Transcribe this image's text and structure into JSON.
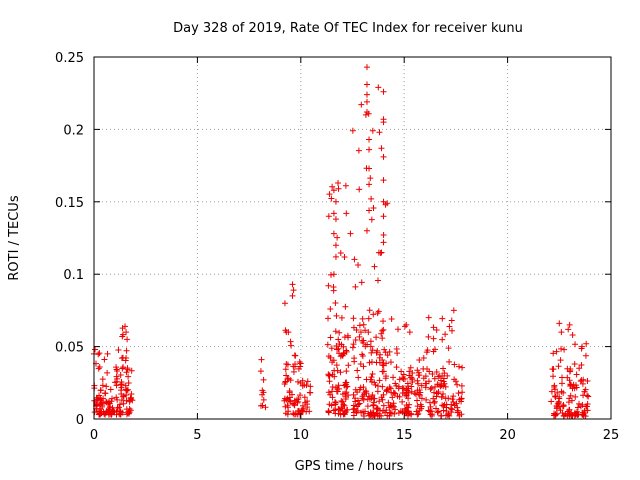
{
  "chart_data": {
    "type": "scatter",
    "title": "Day 328 of 2019, Rate Of TEC Index for receiver kunu",
    "xlabel": "GPS time / hours",
    "ylabel": "ROTI / TECUs",
    "xlim": [
      0,
      25
    ],
    "ylim": [
      0,
      0.25
    ],
    "xticks": [
      0,
      5,
      10,
      15,
      20,
      25
    ],
    "xtick_labels": [
      "0",
      "5",
      "10",
      "15",
      "20",
      "25"
    ],
    "yticks": [
      0,
      0.05,
      0.1,
      0.15,
      0.2,
      0.25
    ],
    "ytick_labels": [
      "0",
      "0.05",
      "0.1",
      "0.15",
      "0.2",
      "0.25"
    ],
    "grid": true,
    "marker": "+",
    "series_color": "#ee0000",
    "series": [
      {
        "name": "ROTI",
        "clusters": [
          {
            "x_range": [
              0.0,
              0.7
            ],
            "y_base": 0.003,
            "y_typical": 0.025,
            "y_max": 0.048,
            "density": 60
          },
          {
            "x_range": [
              0.7,
              1.0
            ],
            "y_base": 0.003,
            "y_typical": 0.015,
            "y_max": 0.025,
            "density": 20
          },
          {
            "x_range": [
              1.0,
              1.9
            ],
            "y_base": 0.003,
            "y_typical": 0.035,
            "y_max": 0.064,
            "density": 70
          },
          {
            "x_range": [
              8.0,
              8.3
            ],
            "y_base": 0.008,
            "y_typical": 0.02,
            "y_max": 0.041,
            "density": 8
          },
          {
            "x_range": [
              9.2,
              10.0
            ],
            "y_base": 0.003,
            "y_typical": 0.04,
            "y_max": 0.093,
            "density": 60
          },
          {
            "x_range": [
              10.0,
              10.5
            ],
            "y_base": 0.005,
            "y_typical": 0.03,
            "y_max": 0.05,
            "density": 20
          },
          {
            "x_range": [
              11.3,
              12.3
            ],
            "y_base": 0.003,
            "y_typical": 0.06,
            "y_max": 0.163,
            "density": 110
          },
          {
            "x_range": [
              12.5,
              14.3
            ],
            "y_base": 0.002,
            "y_typical": 0.07,
            "y_max": 0.243,
            "density": 180
          },
          {
            "x_range": [
              14.3,
              14.8
            ],
            "y_base": 0.003,
            "y_typical": 0.03,
            "y_max": 0.07,
            "density": 30
          },
          {
            "x_range": [
              14.8,
              15.4
            ],
            "y_base": 0.002,
            "y_typical": 0.035,
            "y_max": 0.065,
            "density": 50
          },
          {
            "x_range": [
              15.5,
              17.8
            ],
            "y_base": 0.002,
            "y_typical": 0.035,
            "y_max": 0.075,
            "density": 140
          },
          {
            "x_range": [
              22.1,
              23.9
            ],
            "y_base": 0.002,
            "y_typical": 0.035,
            "y_max": 0.066,
            "density": 120
          }
        ],
        "notable_points": [
          {
            "x": 13.2,
            "y": 0.243
          },
          {
            "x": 13.2,
            "y": 0.231
          },
          {
            "x": 13.2,
            "y": 0.224
          },
          {
            "x": 13.2,
            "y": 0.219
          },
          {
            "x": 13.2,
            "y": 0.212
          },
          {
            "x": 13.3,
            "y": 0.193
          },
          {
            "x": 13.3,
            "y": 0.186
          },
          {
            "x": 13.3,
            "y": 0.173
          },
          {
            "x": 13.3,
            "y": 0.162
          },
          {
            "x": 13.4,
            "y": 0.152
          },
          {
            "x": 13.3,
            "y": 0.144
          },
          {
            "x": 13.2,
            "y": 0.13
          },
          {
            "x": 14.0,
            "y": 0.226
          },
          {
            "x": 14.0,
            "y": 0.207
          },
          {
            "x": 14.0,
            "y": 0.205
          },
          {
            "x": 13.9,
            "y": 0.187
          },
          {
            "x": 14.0,
            "y": 0.181
          },
          {
            "x": 14.0,
            "y": 0.165
          },
          {
            "x": 14.0,
            "y": 0.15
          },
          {
            "x": 14.1,
            "y": 0.148
          },
          {
            "x": 14.0,
            "y": 0.14
          },
          {
            "x": 14.0,
            "y": 0.122
          },
          {
            "x": 13.9,
            "y": 0.115
          },
          {
            "x": 11.8,
            "y": 0.163
          },
          {
            "x": 11.6,
            "y": 0.158
          },
          {
            "x": 11.7,
            "y": 0.15
          },
          {
            "x": 11.6,
            "y": 0.142
          },
          {
            "x": 11.7,
            "y": 0.138
          },
          {
            "x": 12.2,
            "y": 0.142
          },
          {
            "x": 11.6,
            "y": 0.128
          },
          {
            "x": 11.7,
            "y": 0.12
          },
          {
            "x": 11.7,
            "y": 0.112
          },
          {
            "x": 11.6,
            "y": 0.1
          },
          {
            "x": 12.4,
            "y": 0.128
          },
          {
            "x": 9.6,
            "y": 0.093
          },
          {
            "x": 9.65,
            "y": 0.089
          },
          {
            "x": 9.6,
            "y": 0.085
          },
          {
            "x": 9.4,
            "y": 0.06
          },
          {
            "x": 9.3,
            "y": 0.06
          },
          {
            "x": 1.5,
            "y": 0.064
          },
          {
            "x": 1.55,
            "y": 0.06
          },
          {
            "x": 1.6,
            "y": 0.055
          },
          {
            "x": 0.05,
            "y": 0.048
          },
          {
            "x": 0.0,
            "y": 0.045
          },
          {
            "x": 8.1,
            "y": 0.041
          },
          {
            "x": 8.2,
            "y": 0.027
          },
          {
            "x": 17.4,
            "y": 0.075
          },
          {
            "x": 17.3,
            "y": 0.068
          },
          {
            "x": 22.5,
            "y": 0.066
          },
          {
            "x": 23.0,
            "y": 0.065
          },
          {
            "x": 22.6,
            "y": 0.06
          },
          {
            "x": 23.8,
            "y": 0.052
          },
          {
            "x": 23.6,
            "y": 0.05
          },
          {
            "x": 15.1,
            "y": 0.065
          },
          {
            "x": 14.7,
            "y": 0.062
          }
        ]
      }
    ]
  }
}
